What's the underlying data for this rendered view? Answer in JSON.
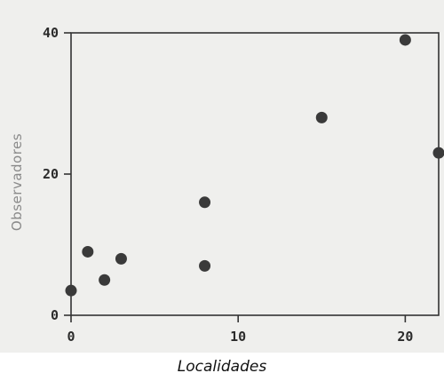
{
  "chart_data": {
    "type": "scatter",
    "title": "",
    "xlabel": "Localidades",
    "ylabel": "Observadores",
    "xlim": [
      0,
      22
    ],
    "ylim": [
      0,
      40
    ],
    "x_ticks": [
      0,
      10,
      20
    ],
    "y_ticks": [
      0,
      20,
      40
    ],
    "x_tick_labels": [
      "0",
      "10",
      "20"
    ],
    "y_tick_labels": [
      "0",
      "20",
      "40"
    ],
    "grid": false,
    "marker_color": "#3a3a3a",
    "points": [
      {
        "x": 0,
        "y": 3.5
      },
      {
        "x": 1,
        "y": 9
      },
      {
        "x": 2,
        "y": 5
      },
      {
        "x": 3,
        "y": 8
      },
      {
        "x": 8,
        "y": 16
      },
      {
        "x": 8,
        "y": 7
      },
      {
        "x": 15,
        "y": 28
      },
      {
        "x": 20,
        "y": 39
      },
      {
        "x": 22,
        "y": 23
      }
    ]
  }
}
